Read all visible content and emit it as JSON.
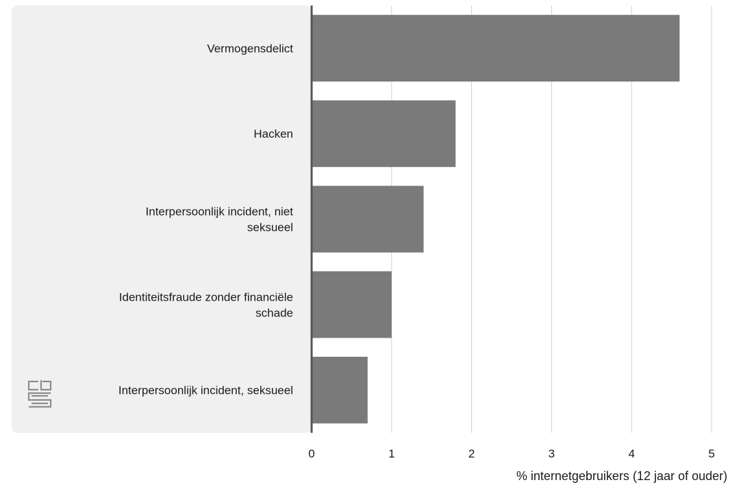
{
  "chart_data": {
    "type": "bar",
    "orientation": "horizontal",
    "categories": [
      [
        "Vermogensdelict"
      ],
      [
        "Hacken"
      ],
      [
        "Interpersoonlijk incident, niet",
        "seksueel"
      ],
      [
        "Identiteitsfraude zonder financiële",
        "schade"
      ],
      [
        "Interpersoonlijk incident, seksueel"
      ]
    ],
    "values": [
      4.6,
      1.8,
      1.4,
      1.0,
      0.7
    ],
    "xlim": [
      0,
      5
    ],
    "x_ticks": [
      "0",
      "1",
      "2",
      "3",
      "4",
      "5"
    ],
    "xlabel": "% internetgebruikers (12 jaar of ouder)",
    "ylabel": "",
    "title": "",
    "grid": "vertical",
    "colors": {
      "bar": "#7a7a7a",
      "label_panel": "#f0f0f0",
      "grid": "#d0d0d0",
      "axis": "#555555",
      "logo": "#8c8c8c"
    },
    "logo": "cbs-logo"
  }
}
